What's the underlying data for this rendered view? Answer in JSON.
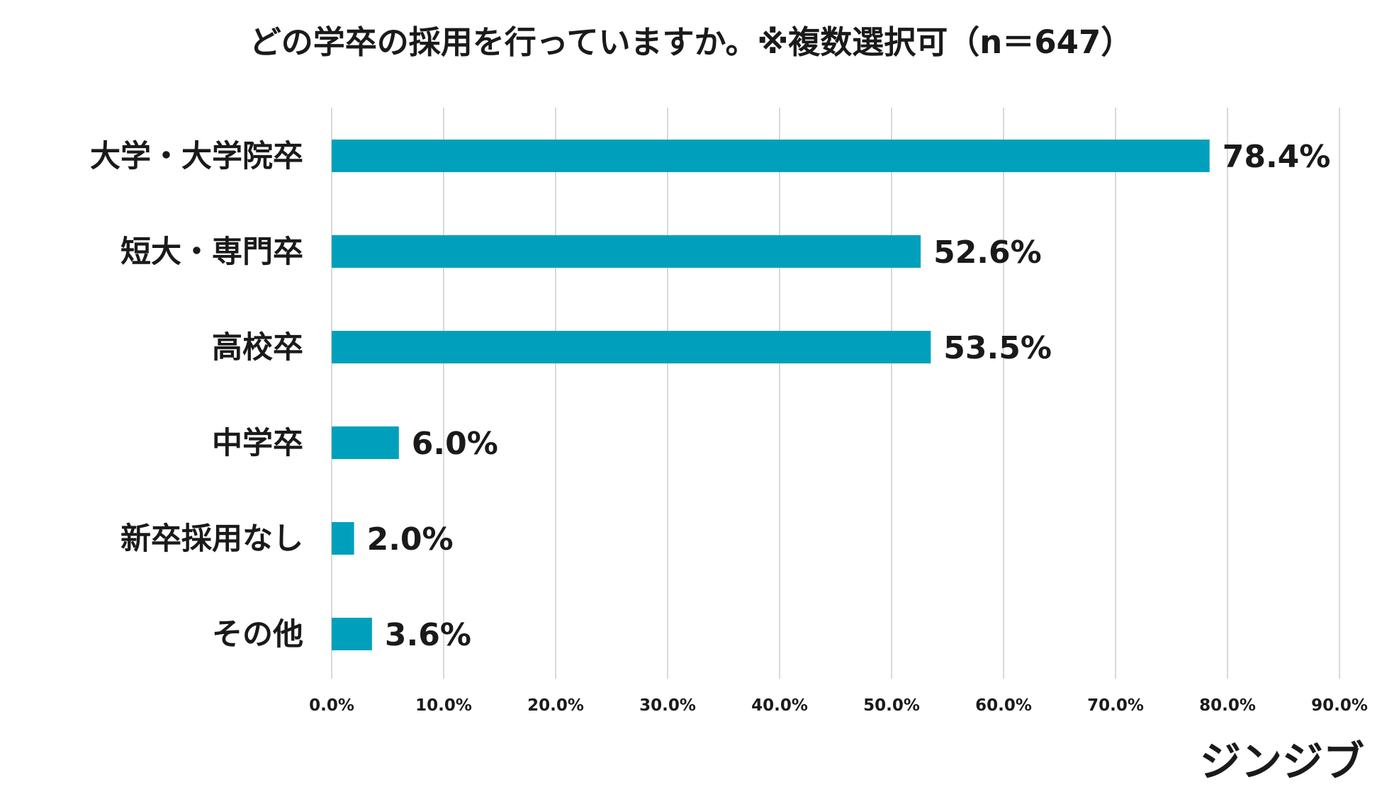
{
  "chart_data": {
    "type": "bar",
    "orientation": "horizontal",
    "title": "どの学卒の採用を行っていますか。※複数選択可（n＝647）",
    "categories": [
      "大学・大学院卒",
      "短大・専門卒",
      "高校卒",
      "中学卒",
      "新卒採用なし",
      "その他"
    ],
    "values": [
      78.4,
      52.6,
      53.5,
      6.0,
      2.0,
      3.6
    ],
    "value_labels": [
      "78.4%",
      "52.6%",
      "53.5%",
      "6.0%",
      "2.0%",
      "3.6%"
    ],
    "xlim": [
      0,
      90
    ],
    "xticks": [
      0,
      10,
      20,
      30,
      40,
      50,
      60,
      70,
      80,
      90
    ],
    "xtick_labels": [
      "0.0%",
      "10.0%",
      "20.0%",
      "30.0%",
      "40.0%",
      "50.0%",
      "60.0%",
      "70.0%",
      "80.0%",
      "90.0%"
    ],
    "grid": true,
    "legend": "none",
    "bar_color": "#00a0bd",
    "xlabel": "",
    "ylabel": ""
  },
  "brand": {
    "logo": "ジンジブ"
  }
}
